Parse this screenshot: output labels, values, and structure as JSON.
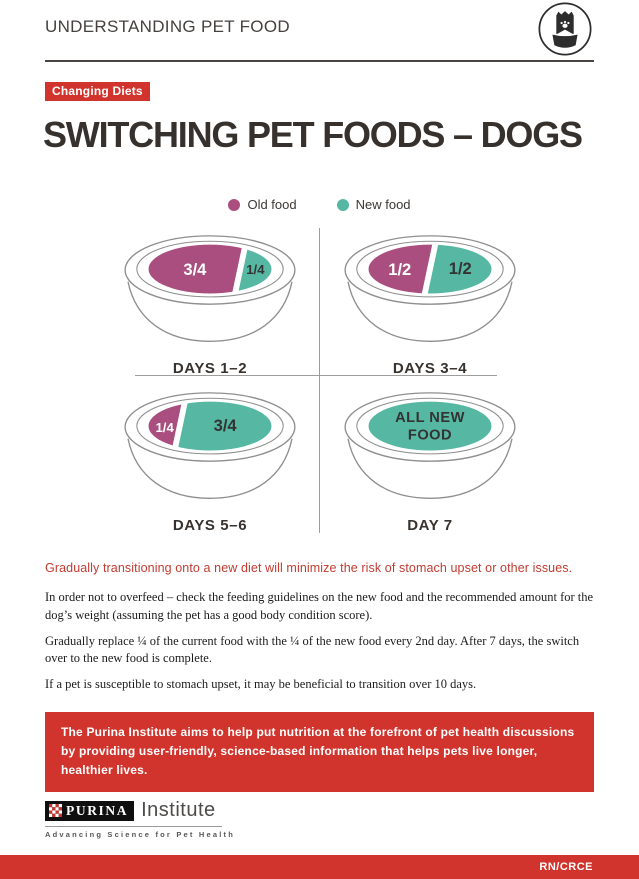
{
  "colors": {
    "red": "#d0342c",
    "lead_red": "#c13c31",
    "old_food": "#a94e7e",
    "new_food": "#56b7a3",
    "rim_gray": "#8f8f8f",
    "dark_text": "#36312d",
    "checker_red": "#c8332e"
  },
  "header": {
    "title": "UNDERSTANDING PET FOOD",
    "icon": "pet-food-bag-and-bowl-icon"
  },
  "badge": {
    "label": "Changing Diets"
  },
  "title": "SWITCHING PET FOODS – DOGS",
  "legend": {
    "old_label": "Old food",
    "new_label": "New food"
  },
  "chart_data": {
    "type": "diagram",
    "subject": "gradual food transition schedule for dogs",
    "bowls": [
      {
        "label": "DAYS 1–2",
        "old": {
          "text": "3/4",
          "value": 0.75
        },
        "new": {
          "text": "1/4",
          "value": 0.25
        }
      },
      {
        "label": "DAYS 3–4",
        "old": {
          "text": "1/2",
          "value": 0.5
        },
        "new": {
          "text": "1/2",
          "value": 0.5
        }
      },
      {
        "label": "DAYS 5–6",
        "old": {
          "text": "1/4",
          "value": 0.25
        },
        "new": {
          "text": "3/4",
          "value": 0.75
        }
      },
      {
        "label": "DAY 7",
        "old": {
          "text": "",
          "value": 0
        },
        "new": {
          "text": "ALL NEW FOOD",
          "value": 1
        },
        "all_lines": [
          "ALL NEW",
          "FOOD"
        ]
      }
    ]
  },
  "lead": "Gradually transitioning onto a new diet will minimize the risk of stomach upset or other issues.",
  "paragraphs": [
    "In order not to overfeed – check the feeding guidelines on the new food and the recommended amount for the dog’s weight (assuming the pet has a good body condition score).",
    "Gradually replace ¼ of the current food with the ¼ of the new food every 2nd day. After 7 days, the switch over to the new food is complete.",
    "If a pet is susceptible to stomach upset, it may be beneficial to transition over 10 days."
  ],
  "callout": "The Purina Institute aims to help put nutrition at the forefront of pet health discussions by providing user-friendly, science-based information that helps pets live longer, healthier lives.",
  "footer": {
    "brand": "PURINA",
    "brand_suffix": "Institute",
    "tagline": "Advancing Science for Pet Health",
    "code": "RN/CRCE"
  }
}
